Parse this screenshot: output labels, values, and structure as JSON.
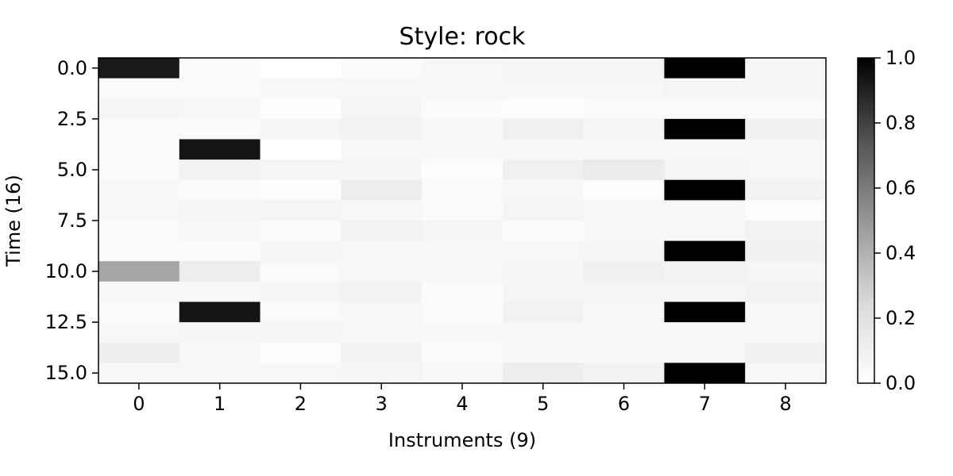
{
  "chart_data": {
    "type": "heatmap",
    "title": "Style: rock",
    "xlabel": "Instruments (9)",
    "ylabel": "Time (16)",
    "x_categories": [
      0,
      1,
      2,
      3,
      4,
      5,
      6,
      7,
      8
    ],
    "y_ticks": [
      0.0,
      2.5,
      5.0,
      7.5,
      10.0,
      12.5,
      15.0
    ],
    "y_tick_labels": [
      "0.0",
      "2.5",
      "5.0",
      "7.5",
      "10.0",
      "12.5",
      "15.0"
    ],
    "colorbar_range": [
      0.0,
      1.0
    ],
    "colorbar_ticks": [
      "0.0",
      "0.2",
      "0.4",
      "0.6",
      "0.8",
      "1.0"
    ],
    "colormap": "Greys",
    "values": [
      [
        0.9,
        0.02,
        0.0,
        0.02,
        0.03,
        0.04,
        0.04,
        1.0,
        0.04
      ],
      [
        0.02,
        0.02,
        0.03,
        0.03,
        0.03,
        0.03,
        0.03,
        0.04,
        0.04
      ],
      [
        0.04,
        0.03,
        0.01,
        0.04,
        0.02,
        0.01,
        0.02,
        0.02,
        0.02
      ],
      [
        0.02,
        0.02,
        0.04,
        0.05,
        0.03,
        0.06,
        0.04,
        1.0,
        0.06
      ],
      [
        0.02,
        0.92,
        0.0,
        0.03,
        0.03,
        0.03,
        0.03,
        0.03,
        0.03
      ],
      [
        0.02,
        0.05,
        0.04,
        0.04,
        0.01,
        0.06,
        0.08,
        0.04,
        0.03
      ],
      [
        0.03,
        0.02,
        0.01,
        0.07,
        0.02,
        0.03,
        0.01,
        1.0,
        0.05
      ],
      [
        0.03,
        0.04,
        0.04,
        0.03,
        0.02,
        0.04,
        0.03,
        0.03,
        0.01
      ],
      [
        0.02,
        0.03,
        0.02,
        0.05,
        0.04,
        0.02,
        0.03,
        0.03,
        0.05
      ],
      [
        0.02,
        0.02,
        0.04,
        0.03,
        0.03,
        0.03,
        0.04,
        1.0,
        0.06
      ],
      [
        0.35,
        0.07,
        0.02,
        0.03,
        0.03,
        0.04,
        0.06,
        0.05,
        0.04
      ],
      [
        0.03,
        0.03,
        0.04,
        0.05,
        0.02,
        0.04,
        0.04,
        0.04,
        0.05
      ],
      [
        0.02,
        0.92,
        0.02,
        0.03,
        0.02,
        0.05,
        0.03,
        1.0,
        0.03
      ],
      [
        0.03,
        0.04,
        0.04,
        0.03,
        0.03,
        0.03,
        0.03,
        0.03,
        0.03
      ],
      [
        0.07,
        0.03,
        0.01,
        0.05,
        0.02,
        0.03,
        0.03,
        0.03,
        0.06
      ],
      [
        0.03,
        0.03,
        0.03,
        0.04,
        0.03,
        0.07,
        0.05,
        1.0,
        0.03
      ]
    ]
  }
}
